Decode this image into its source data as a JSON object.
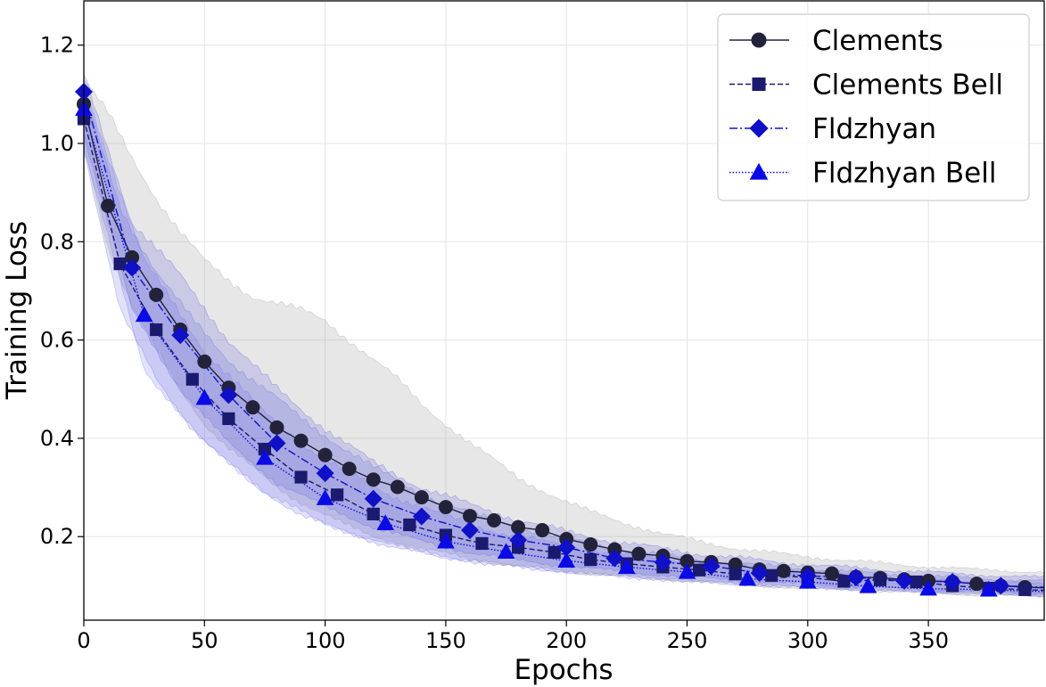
{
  "chart_data": {
    "type": "line",
    "title": "",
    "xlabel": "Epochs",
    "ylabel": "Training Loss",
    "xlim": [
      0,
      398
    ],
    "ylim": [
      0.03,
      1.29
    ],
    "xticks": [
      0,
      50,
      100,
      150,
      200,
      250,
      300,
      350
    ],
    "yticks": [
      0.2,
      0.4,
      0.6,
      0.8,
      1.0,
      1.2
    ],
    "ytick_labels": [
      "0.2",
      "0.4",
      "0.6",
      "0.8",
      "1.0",
      "1.2"
    ],
    "grid": true,
    "legend_position": "top-right",
    "series": [
      {
        "name": "Clements",
        "color": "#22223a",
        "marker": "circle",
        "line_style": "solid",
        "band_color": "#9a9a9a",
        "x": [
          0,
          10,
          20,
          30,
          40,
          50,
          60,
          70,
          80,
          90,
          100,
          110,
          120,
          130,
          140,
          150,
          160,
          170,
          180,
          190,
          200,
          210,
          220,
          230,
          240,
          250,
          260,
          270,
          280,
          290,
          300,
          310,
          320,
          330,
          340,
          350,
          360,
          370,
          380,
          390,
          398
        ],
        "y": [
          1.08,
          0.873,
          0.768,
          0.692,
          0.621,
          0.556,
          0.503,
          0.463,
          0.422,
          0.395,
          0.366,
          0.338,
          0.316,
          0.301,
          0.28,
          0.26,
          0.242,
          0.233,
          0.219,
          0.213,
          0.195,
          0.184,
          0.174,
          0.165,
          0.161,
          0.15,
          0.148,
          0.143,
          0.133,
          0.13,
          0.127,
          0.125,
          0.118,
          0.116,
          0.113,
          0.11,
          0.108,
          0.104,
          0.1,
          0.097,
          0.096
        ],
        "band_lower": [
          1.0,
          0.79,
          0.67,
          0.58,
          0.5,
          0.43,
          0.38,
          0.34,
          0.3,
          0.27,
          0.245,
          0.22,
          0.2,
          0.19,
          0.175,
          0.165,
          0.155,
          0.147,
          0.14,
          0.135,
          0.13,
          0.125,
          0.12,
          0.117,
          0.114,
          0.11,
          0.107,
          0.104,
          0.1,
          0.097,
          0.095,
          0.093,
          0.091,
          0.089,
          0.087,
          0.085,
          0.083,
          0.081,
          0.08,
          0.078,
          0.077
        ],
        "band_upper": [
          1.13,
          1.06,
          0.97,
          0.89,
          0.82,
          0.76,
          0.72,
          0.69,
          0.675,
          0.66,
          0.64,
          0.6,
          0.56,
          0.52,
          0.47,
          0.43,
          0.39,
          0.355,
          0.32,
          0.295,
          0.27,
          0.25,
          0.235,
          0.22,
          0.205,
          0.195,
          0.185,
          0.177,
          0.17,
          0.164,
          0.159,
          0.155,
          0.15,
          0.146,
          0.142,
          0.139,
          0.136,
          0.133,
          0.131,
          0.129,
          0.128
        ]
      },
      {
        "name": "Clements Bell",
        "color": "#1a1a6e",
        "marker": "square",
        "line_style": "dashed",
        "band_color": "#6a6ad8",
        "x": [
          0,
          15,
          30,
          45,
          60,
          75,
          90,
          105,
          120,
          135,
          150,
          165,
          180,
          195,
          210,
          225,
          240,
          255,
          270,
          285,
          300,
          315,
          330,
          345,
          360,
          375,
          390,
          398
        ],
        "y": [
          1.05,
          0.755,
          0.621,
          0.52,
          0.44,
          0.378,
          0.321,
          0.285,
          0.246,
          0.224,
          0.203,
          0.186,
          0.178,
          0.168,
          0.153,
          0.145,
          0.138,
          0.132,
          0.124,
          0.121,
          0.117,
          0.109,
          0.112,
          0.108,
          0.1,
          0.095,
          0.092,
          0.091
        ],
        "band_lower": [
          0.99,
          0.66,
          0.52,
          0.42,
          0.35,
          0.29,
          0.245,
          0.215,
          0.19,
          0.172,
          0.158,
          0.147,
          0.138,
          0.131,
          0.124,
          0.118,
          0.113,
          0.108,
          0.104,
          0.1,
          0.096,
          0.093,
          0.09,
          0.088,
          0.085,
          0.083,
          0.08,
          0.079
        ],
        "band_upper": [
          1.1,
          0.87,
          0.74,
          0.64,
          0.56,
          0.5,
          0.44,
          0.39,
          0.34,
          0.3,
          0.265,
          0.24,
          0.22,
          0.2,
          0.185,
          0.172,
          0.162,
          0.153,
          0.146,
          0.14,
          0.134,
          0.129,
          0.125,
          0.121,
          0.117,
          0.114,
          0.111,
          0.11
        ]
      },
      {
        "name": "Fldzhyan",
        "color": "#1010c8",
        "marker": "diamond",
        "line_style": "dashdot",
        "band_color": "#5a5ae0",
        "x": [
          0,
          20,
          40,
          60,
          80,
          100,
          120,
          140,
          160,
          180,
          200,
          220,
          240,
          260,
          280,
          300,
          320,
          340,
          360,
          380,
          398
        ],
        "y": [
          1.105,
          0.747,
          0.61,
          0.488,
          0.39,
          0.329,
          0.277,
          0.241,
          0.213,
          0.193,
          0.178,
          0.156,
          0.148,
          0.14,
          0.126,
          0.12,
          0.117,
          0.11,
          0.108,
          0.1,
          0.097
        ],
        "band_lower": [
          1.02,
          0.66,
          0.5,
          0.39,
          0.31,
          0.26,
          0.22,
          0.19,
          0.168,
          0.152,
          0.14,
          0.13,
          0.122,
          0.115,
          0.108,
          0.103,
          0.098,
          0.094,
          0.09,
          0.087,
          0.085
        ],
        "band_upper": [
          1.14,
          0.84,
          0.73,
          0.6,
          0.5,
          0.42,
          0.35,
          0.3,
          0.265,
          0.235,
          0.21,
          0.19,
          0.175,
          0.162,
          0.152,
          0.143,
          0.136,
          0.13,
          0.125,
          0.12,
          0.117
        ]
      },
      {
        "name": "Fldzhyan Bell",
        "color": "#0a0ae6",
        "marker": "triangle",
        "line_style": "dotted",
        "band_color": "#7070f0",
        "x": [
          0,
          25,
          50,
          75,
          100,
          125,
          150,
          175,
          200,
          225,
          250,
          275,
          300,
          325,
          350,
          375,
          398
        ],
        "y": [
          1.07,
          0.651,
          0.482,
          0.36,
          0.278,
          0.227,
          0.19,
          0.169,
          0.151,
          0.138,
          0.128,
          0.114,
          0.108,
          0.099,
          0.094,
          0.092,
          0.088
        ],
        "band_lower": [
          0.99,
          0.54,
          0.39,
          0.29,
          0.225,
          0.185,
          0.158,
          0.142,
          0.128,
          0.118,
          0.11,
          0.102,
          0.097,
          0.092,
          0.087,
          0.084,
          0.081
        ],
        "band_upper": [
          1.12,
          0.76,
          0.58,
          0.45,
          0.355,
          0.29,
          0.24,
          0.205,
          0.18,
          0.162,
          0.15,
          0.138,
          0.128,
          0.12,
          0.113,
          0.108,
          0.104
        ]
      }
    ]
  }
}
